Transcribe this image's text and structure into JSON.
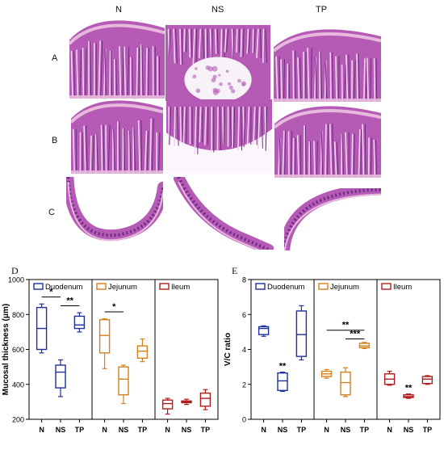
{
  "figure": {
    "column_headers": [
      "N",
      "NS",
      "TP"
    ],
    "row_labels": [
      "A",
      "B",
      "C"
    ],
    "histology_tiles": [
      {
        "row": "A",
        "col": "N",
        "desc": "villi-up"
      },
      {
        "row": "A",
        "col": "NS",
        "desc": "villi-center"
      },
      {
        "row": "A",
        "col": "TP",
        "desc": "villi-up"
      },
      {
        "row": "B",
        "col": "N",
        "desc": "villi-up"
      },
      {
        "row": "B",
        "col": "NS",
        "desc": "villi-down"
      },
      {
        "row": "B",
        "col": "TP",
        "desc": "villi-up"
      },
      {
        "row": "C",
        "col": "N",
        "desc": "ring-bottom"
      },
      {
        "row": "C",
        "col": "NS",
        "desc": "ring-diagonal"
      },
      {
        "row": "C",
        "col": "TP",
        "desc": "ring-arc"
      }
    ],
    "colors": {
      "tissue": "#b55bb5",
      "tissue_dark": "#6d2a86",
      "tissue_light": "#e7b9dd",
      "duodenum": "#1f2f9c",
      "jejunum": "#d4811f",
      "ileum": "#b31c1c"
    }
  },
  "chart_data": [
    {
      "panel_label": "D",
      "type": "box",
      "ylabel": "Mucosal thickness (μm)",
      "ylim": [
        200,
        1000
      ],
      "yticks": [
        200,
        400,
        600,
        800,
        1000
      ],
      "groups": [
        {
          "name": "Duodenum",
          "color": "#1f2f9c",
          "boxes": [
            {
              "x": "N",
              "min": 580,
              "q1": 600,
              "median": 720,
              "q3": 840,
              "max": 860
            },
            {
              "x": "NS",
              "min": 330,
              "q1": 380,
              "median": 470,
              "q3": 510,
              "max": 540
            },
            {
              "x": "TP",
              "min": 700,
              "q1": 720,
              "median": 740,
              "q3": 790,
              "max": 810
            }
          ],
          "significance": [
            {
              "from": "N",
              "to": "NS",
              "text": "*"
            },
            {
              "from": "NS",
              "to": "TP",
              "text": "**"
            }
          ]
        },
        {
          "name": "Jejunum",
          "color": "#d4811f",
          "boxes": [
            {
              "x": "N",
              "min": 490,
              "q1": 580,
              "median": 680,
              "q3": 770,
              "max": 775
            },
            {
              "x": "NS",
              "min": 290,
              "q1": 340,
              "median": 430,
              "q3": 500,
              "max": 510
            },
            {
              "x": "TP",
              "min": 530,
              "q1": 550,
              "median": 590,
              "q3": 620,
              "max": 660
            }
          ],
          "significance": [
            {
              "from": "N",
              "to": "NS",
              "text": "*"
            }
          ]
        },
        {
          "name": "Ileum",
          "color": "#b31c1c",
          "boxes": [
            {
              "x": "N",
              "min": 230,
              "q1": 260,
              "median": 290,
              "q3": 310,
              "max": 320
            },
            {
              "x": "NS",
              "min": 285,
              "q1": 295,
              "median": 300,
              "q3": 305,
              "max": 315
            },
            {
              "x": "TP",
              "min": 255,
              "q1": 275,
              "median": 320,
              "q3": 350,
              "max": 370
            }
          ],
          "significance": []
        }
      ]
    },
    {
      "panel_label": "E",
      "type": "box",
      "ylabel": "V/C ratio",
      "ylim": [
        0,
        8
      ],
      "yticks": [
        0,
        2,
        4,
        6,
        8
      ],
      "groups": [
        {
          "name": "Duodenum",
          "color": "#1f2f9c",
          "boxes": [
            {
              "x": "N",
              "min": 4.75,
              "q1": 4.85,
              "median": 5.2,
              "q3": 5.3,
              "max": 5.35
            },
            {
              "x": "NS",
              "min": 1.6,
              "q1": 1.65,
              "median": 2.2,
              "q3": 2.65,
              "max": 2.7
            },
            {
              "x": "TP",
              "min": 3.4,
              "q1": 3.6,
              "median": 4.85,
              "q3": 6.2,
              "max": 6.5
            }
          ],
          "stars": [
            {
              "x": "NS",
              "text": "**"
            }
          ]
        },
        {
          "name": "Jejunum",
          "color": "#d4811f",
          "boxes": [
            {
              "x": "N",
              "min": 2.35,
              "q1": 2.45,
              "median": 2.6,
              "q3": 2.75,
              "max": 2.85
            },
            {
              "x": "NS",
              "min": 1.3,
              "q1": 1.4,
              "median": 2.1,
              "q3": 2.7,
              "max": 2.95
            },
            {
              "x": "TP",
              "min": 4.05,
              "q1": 4.1,
              "median": 4.2,
              "q3": 4.35,
              "max": 4.4
            }
          ],
          "significance": [
            {
              "from": "N",
              "to": "TP",
              "text": "**",
              "y": 5.1
            },
            {
              "from": "NS",
              "to": "TP",
              "text": "***",
              "y": 4.6
            }
          ]
        },
        {
          "name": "Ileum",
          "color": "#b31c1c",
          "boxes": [
            {
              "x": "N",
              "min": 1.95,
              "q1": 2.0,
              "median": 2.3,
              "q3": 2.6,
              "max": 2.75
            },
            {
              "x": "NS",
              "min": 1.2,
              "q1": 1.25,
              "median": 1.3,
              "q3": 1.4,
              "max": 1.45
            },
            {
              "x": "TP",
              "min": 2.0,
              "q1": 2.05,
              "median": 2.3,
              "q3": 2.45,
              "max": 2.5
            }
          ],
          "stars": [
            {
              "x": "NS",
              "text": "**"
            }
          ]
        }
      ]
    }
  ]
}
